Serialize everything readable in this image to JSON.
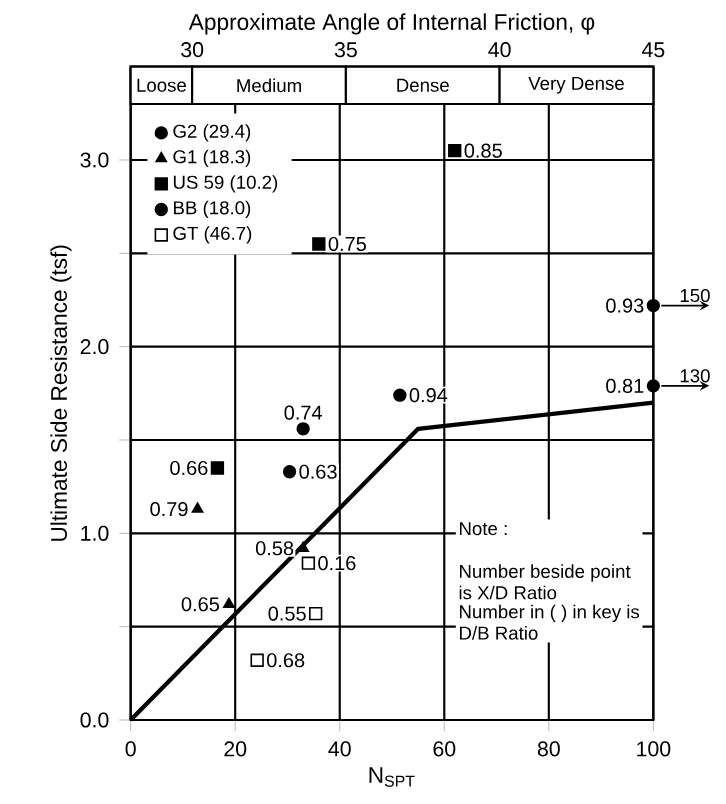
{
  "chart_data": {
    "type": "scatter",
    "x2label": "Approximate Angle of Internal Friction, φ",
    "xlabel": "N$_{SPT}$",
    "ylabel": "Ultimate Side Resistance (tsf)",
    "xlim": [
      0,
      100
    ],
    "xticks": [
      0,
      20,
      40,
      60,
      80,
      100
    ],
    "x2lim": [
      28,
      45
    ],
    "x2ticks": [
      30,
      35,
      40,
      45
    ],
    "ylim": [
      0,
      3.5
    ],
    "yticks": [
      {
        "value": 0,
        "label": "0.0"
      },
      {
        "value": 0.5,
        "label": null
      },
      {
        "value": 1,
        "label": "1.0"
      },
      {
        "value": 1.5,
        "label": null
      },
      {
        "value": 2,
        "label": "2.0"
      },
      {
        "value": 2.5,
        "label": null
      },
      {
        "value": 3,
        "label": "3.0"
      }
    ],
    "grid": true,
    "legend": "top left",
    "series": [
      {
        "name": "G2 (29.4)",
        "color": "#000000",
        "marker": "circle",
        "x": [
          100,
          100,
          51.5
        ],
        "values": [
          2.22,
          1.79,
          1.74
        ]
      },
      {
        "name": "G1 (18.3)",
        "color": "#000000",
        "marker": "triangle",
        "x": [
          12.8,
          33,
          18.8
        ],
        "values": [
          1.13,
          0.92,
          0.62
        ]
      },
      {
        "name": "US 59 (10.2)",
        "color": "#000000",
        "marker": "square",
        "x": [
          62,
          36,
          16.6
        ],
        "values": [
          3.05,
          2.55,
          1.35
        ]
      },
      {
        "name": "BB (18.0)",
        "color": "#000000",
        "marker": "circle",
        "x": [
          33,
          30.4
        ],
        "values": [
          1.56,
          1.33
        ]
      },
      {
        "name": "GT (46.7)",
        "color": "#ffffff",
        "marker": "square",
        "x": [
          34,
          35.4,
          24.2
        ],
        "values": [
          0.84,
          0.57,
          0.32
        ]
      },
      {
        "type": "line",
        "color": "#000000",
        "marker": "none",
        "line_style": "solid",
        "x": [
          0,
          55,
          100
        ],
        "values": [
          0,
          1.56,
          1.7
        ]
      }
    ],
    "bands": [
      {
        "axis": "x2",
        "from": 28,
        "to": 30,
        "label": "Loose"
      },
      {
        "axis": "x2",
        "from": 30,
        "to": 35,
        "label": "Medium"
      },
      {
        "axis": "x2",
        "from": 35,
        "to": 40,
        "label": "Dense"
      },
      {
        "axis": "x2",
        "from": 40,
        "to": 45,
        "label": "Very Dense"
      }
    ],
    "annotations": [
      {
        "text": "0.85",
        "x": 62,
        "y": 3.05
      },
      {
        "text": "0.75",
        "x": 36,
        "y": 2.55
      },
      {
        "text": "0.93",
        "x": 100,
        "y": 2.22
      },
      {
        "text": "0.81",
        "x": 100,
        "y": 1.79
      },
      {
        "text": "0.94",
        "x": 51.5,
        "y": 1.74
      },
      {
        "text": "0.74",
        "x": 33,
        "y": 1.56
      },
      {
        "text": "0.63",
        "x": 30.4,
        "y": 1.33
      },
      {
        "text": "0.66",
        "x": 16.6,
        "y": 1.35
      },
      {
        "text": "0.79",
        "x": 12.8,
        "y": 1.13
      },
      {
        "text": "0.58",
        "x": 33,
        "y": 0.92
      },
      {
        "text": "0.16",
        "x": 34,
        "y": 0.84
      },
      {
        "text": "0.65",
        "x": 18.8,
        "y": 0.62
      },
      {
        "text": "0.55",
        "x": 35.4,
        "y": 0.57
      },
      {
        "text": "0.68",
        "x": 24.2,
        "y": 0.32
      },
      {
        "text": "150",
        "x": 100,
        "y": 2.22
      },
      {
        "text": "130",
        "x": 100,
        "y": 1.79
      },
      "Note :",
      "Number beside point is X/D Ratio",
      "Number in ( ) in key is D/B Ratio"
    ]
  }
}
